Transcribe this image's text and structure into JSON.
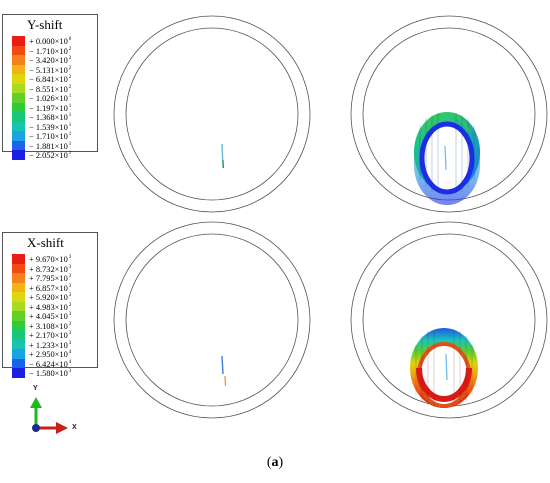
{
  "legend_top": {
    "title": "Y-shift",
    "entries": [
      {
        "value": "+ 0.000×10",
        "exp": "0"
      },
      {
        "value": "− 1.710×10",
        "exp": "2"
      },
      {
        "value": "− 3.420×10",
        "exp": "2"
      },
      {
        "value": "− 5.131×10",
        "exp": "2"
      },
      {
        "value": "− 6.841×10",
        "exp": "2"
      },
      {
        "value": "− 8.551×10",
        "exp": "2"
      },
      {
        "value": "− 1.026×10",
        "exp": "1"
      },
      {
        "value": "− 1.197×10",
        "exp": "1"
      },
      {
        "value": "− 1.368×10",
        "exp": "1"
      },
      {
        "value": "− 1.539×10",
        "exp": "1"
      },
      {
        "value": "− 1.710×10",
        "exp": "1"
      },
      {
        "value": "− 1.881×10",
        "exp": "1"
      },
      {
        "value": "− 2.052×10",
        "exp": "1"
      }
    ],
    "colors": [
      "#e81d16",
      "#f24a13",
      "#f4811b",
      "#f2b315",
      "#dfd610",
      "#a6dc1d",
      "#63d02a",
      "#2ecb3a",
      "#19c776",
      "#17c4b0",
      "#1aa4e2",
      "#1a63ec",
      "#1b1fe6"
    ]
  },
  "legend_bottom": {
    "title": "X-shift",
    "entries": [
      {
        "value": "+ 9.670×10",
        "exp": "3"
      },
      {
        "value": "+ 8.732×10",
        "exp": "3"
      },
      {
        "value": "+ 7.795×10",
        "exp": "3"
      },
      {
        "value": "+ 6.857×10",
        "exp": "3"
      },
      {
        "value": "+ 5.920×10",
        "exp": "3"
      },
      {
        "value": "+ 4.983×10",
        "exp": "3"
      },
      {
        "value": "+ 4.045×10",
        "exp": "3"
      },
      {
        "value": "+ 3.108×10",
        "exp": "3"
      },
      {
        "value": "+ 2.170×10",
        "exp": "3"
      },
      {
        "value": "+ 1.233×10",
        "exp": "3"
      },
      {
        "value": "+ 2.950×10",
        "exp": "4"
      },
      {
        "value": "− 6.424×10",
        "exp": "4"
      },
      {
        "value": "− 1.580×10",
        "exp": "3"
      }
    ],
    "colors": [
      "#e81d16",
      "#f24a13",
      "#f4811b",
      "#f2b315",
      "#dfd610",
      "#a6dc1d",
      "#63d02a",
      "#2ecb3a",
      "#19c776",
      "#17c4b0",
      "#1aa4e2",
      "#1a63ec",
      "#1b1fe6"
    ]
  },
  "triad": {
    "y_label": "Y",
    "x_label": "X",
    "y_color": "#1dbb1d",
    "x_color": "#c8201a"
  },
  "caption": {
    "open": "(",
    "letter": "a",
    "close": ")"
  }
}
